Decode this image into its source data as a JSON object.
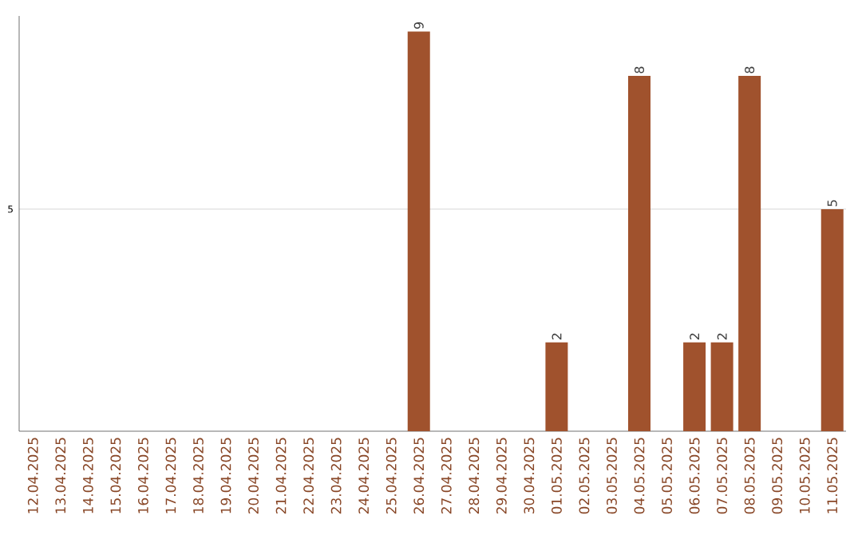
{
  "chart_data": {
    "type": "bar",
    "categories": [
      "12.04.2025",
      "13.04.2025",
      "14.04.2025",
      "15.04.2025",
      "16.04.2025",
      "17.04.2025",
      "18.04.2025",
      "19.04.2025",
      "20.04.2025",
      "21.04.2025",
      "22.04.2025",
      "23.04.2025",
      "24.04.2025",
      "25.04.2025",
      "26.04.2025",
      "27.04.2025",
      "28.04.2025",
      "29.04.2025",
      "30.04.2025",
      "01.05.2025",
      "02.05.2025",
      "03.05.2025",
      "04.05.2025",
      "05.05.2025",
      "06.05.2025",
      "07.05.2025",
      "08.05.2025",
      "09.05.2025",
      "10.05.2025",
      "11.05.2025"
    ],
    "values": [
      null,
      null,
      null,
      null,
      null,
      null,
      null,
      null,
      null,
      null,
      null,
      null,
      null,
      null,
      9,
      null,
      null,
      null,
      null,
      2,
      null,
      null,
      8,
      null,
      2,
      2,
      8,
      null,
      null,
      5
    ],
    "data_labels": true,
    "color": "#a0522d",
    "ylim": [
      0,
      9.35
    ],
    "yticks": [
      5
    ],
    "grid": "y",
    "legend": false
  }
}
